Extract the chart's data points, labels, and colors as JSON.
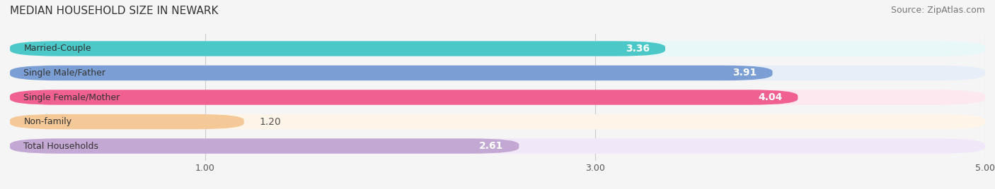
{
  "title": "MEDIAN HOUSEHOLD SIZE IN NEWARK",
  "source": "Source: ZipAtlas.com",
  "categories": [
    "Married-Couple",
    "Single Male/Father",
    "Single Female/Mother",
    "Non-family",
    "Total Households"
  ],
  "values": [
    3.36,
    3.91,
    4.04,
    1.2,
    2.61
  ],
  "bar_colors": [
    "#4dc8c8",
    "#7b9fd4",
    "#f06090",
    "#f5c897",
    "#c4a8d4"
  ],
  "bar_bg_colors": [
    "#e8f8f8",
    "#e8eef8",
    "#fde8f0",
    "#fef5e8",
    "#f0e8f8"
  ],
  "xlim": [
    0,
    5.0
  ],
  "xticks": [
    1.0,
    3.0,
    5.0
  ],
  "label_inside_threshold": 2.5,
  "title_fontsize": 11,
  "source_fontsize": 9,
  "bar_label_fontsize": 10,
  "category_fontsize": 9,
  "background_color": "#f5f5f5"
}
